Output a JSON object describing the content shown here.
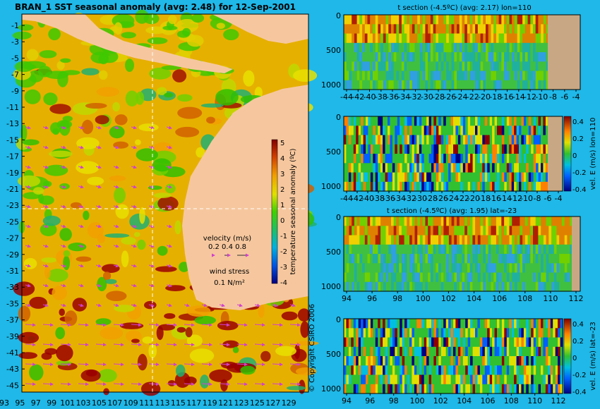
{
  "colors": {
    "background": "#1fb8e8",
    "land": "#f6c79e",
    "land_section": "#c8a884",
    "quiver": "#d040d0"
  },
  "chart_data": [
    {
      "type": "heatmap",
      "title": "BRAN_1  SST seasonal anomaly  (avg: 2.48) for 12-Sep-2001",
      "x_ticks": [
        "93",
        "95",
        "97",
        "99",
        "101",
        "103",
        "105",
        "107",
        "109",
        "111",
        "113",
        "115",
        "117",
        "119",
        "121",
        "123",
        "125",
        "127",
        "129"
      ],
      "y_ticks": [
        "-1",
        "-3",
        "-5",
        "-7",
        "-9",
        "-11",
        "-13",
        "-15",
        "-17",
        "-19",
        "-21",
        "-23",
        "-25",
        "-27",
        "-29",
        "-31",
        "-33",
        "-35",
        "-37",
        "-39",
        "-41",
        "-43",
        "-45"
      ],
      "colorbar": {
        "label": "temperature seasonal anomaly (ºC)",
        "ticks": [
          "5",
          "4",
          "3",
          "2",
          "1",
          "0",
          "-1",
          "-2",
          "-3",
          "-4"
        ],
        "range": [
          -4,
          5
        ]
      },
      "legend": {
        "velocity_label": "velocity (m/s)",
        "velocity_scale": "0.2 0.4 0.8",
        "wind_label": "wind stress",
        "wind_scale": "0.1 N/m²"
      },
      "copyright": "© Copyright CSIRO 2006",
      "section_lines": {
        "lon": 110,
        "lat": -23
      }
    },
    {
      "type": "heatmap",
      "title": "t section (-4.5ºC) (avg: 2.17) lon=110",
      "x_ticks": [
        "-44",
        "-42",
        "-40",
        "-38",
        "-36",
        "-34",
        "-32",
        "-30",
        "-28",
        "-26",
        "-24",
        "-22",
        "-20",
        "-18",
        "-16",
        "-14",
        "-12",
        "-10",
        "-8",
        "-6",
        "-4"
      ],
      "y_ticks": [
        "0",
        "500",
        "1000"
      ]
    },
    {
      "type": "heatmap",
      "title": "",
      "x_ticks": [
        "-44",
        "-42",
        "-40",
        "-38",
        "-36",
        "-34",
        "-32",
        "-30",
        "-28",
        "-26",
        "-24",
        "-22",
        "-20",
        "-18",
        "-16",
        "-14",
        "-12",
        "-10",
        "-8",
        "-6",
        "-4"
      ],
      "y_ticks": [
        "0",
        "500",
        "1000"
      ],
      "colorbar": {
        "label": "vel. E (m/s) lon=110",
        "ticks": [
          "0.4",
          "0.2",
          "0",
          "-0.2",
          "-0.4"
        ],
        "range": [
          -0.4,
          0.4
        ]
      }
    },
    {
      "type": "heatmap",
      "title": "t section (-4.5ºC) (avg: 1.95) lat=-23",
      "x_ticks": [
        "94",
        "96",
        "98",
        "100",
        "102",
        "104",
        "106",
        "108",
        "110",
        "112"
      ],
      "y_ticks": [
        "0",
        "500",
        "1000"
      ]
    },
    {
      "type": "heatmap",
      "title": "",
      "x_ticks": [
        "94",
        "96",
        "98",
        "100",
        "102",
        "104",
        "106",
        "108",
        "110",
        "112"
      ],
      "y_ticks": [
        "0",
        "500",
        "1000"
      ],
      "colorbar": {
        "label": "vel. E (m/s) lat=-23",
        "ticks": [
          "0.4",
          "0.2",
          "0",
          "-0.2",
          "-0.4"
        ],
        "range": [
          -0.4,
          0.4
        ]
      }
    }
  ]
}
